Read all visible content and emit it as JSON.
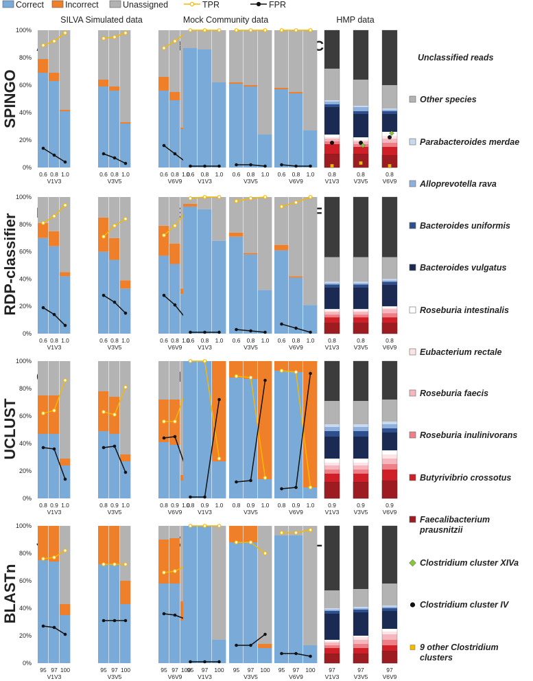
{
  "legend_top": [
    {
      "label": "Correct",
      "kind": "box",
      "color": "#7aaad8"
    },
    {
      "label": "Incorrect",
      "kind": "box",
      "color": "#f07f2a"
    },
    {
      "label": "Unassigned",
      "kind": "box",
      "color": "#b3b3b3"
    },
    {
      "label": "TPR",
      "kind": "line",
      "color": "#f5b800"
    },
    {
      "label": "FPR",
      "kind": "line",
      "color": "#111111"
    }
  ],
  "column_titles": [
    "SILVA Simulated data",
    "Mock Community data",
    "HMP data"
  ],
  "row_titles": [
    "SPINGO",
    "RDP-classifier",
    "UCLUST",
    "BLASTn"
  ],
  "panel_letters": [
    [
      "A",
      "B",
      "C"
    ],
    [
      "D",
      "E",
      "F"
    ],
    [
      "G",
      "H",
      "I"
    ],
    [
      "J",
      "K",
      "L"
    ]
  ],
  "y_ticks": [
    "0%",
    "20%",
    "40%",
    "60%",
    "80%",
    "100%"
  ],
  "regions": [
    "V1V3",
    "V3V5",
    "V6V9"
  ],
  "thresholds": [
    [
      "0.6",
      "0.8",
      "1.0"
    ],
    [
      "0.6",
      "0.8",
      "1.0"
    ],
    [
      "0.8",
      "0.9",
      "1.0"
    ],
    [
      "95",
      "97",
      "100"
    ]
  ],
  "hmp_threshold": [
    "0.8",
    "0.8",
    "0.9",
    "97"
  ],
  "colors": {
    "correct": "#7aaad8",
    "incorrect": "#f07f2a",
    "unassigned": "#b3b3b3",
    "tpr": "#f5b800",
    "fpr": "#111111",
    "unclassified": "#3c3c3c",
    "other": "#b3b3b3",
    "merdae": "#c9d9ef",
    "rava": "#8fb0dc",
    "uniformis": "#2e4f8e",
    "vulgatus": "#1b2a52",
    "intestinalis": "#ffffff",
    "rectale": "#fbe3e6",
    "faecis": "#f6b6bd",
    "inulinivorans": "#ee7f86",
    "crossotus": "#cf2027",
    "prausnitzii": "#9c1c22",
    "clxiva": "#8bc53f",
    "cliv": "#111111",
    "other_clostridium": "#f5b800"
  },
  "chart_data": {
    "type": "bar",
    "silva": [
      [
        {
          "region": "V1V3",
          "correct": [
            69,
            63,
            41
          ],
          "incorrect": [
            10,
            6,
            1
          ],
          "tpr": [
            89,
            92,
            98
          ],
          "fpr": [
            14,
            9,
            4
          ]
        },
        {
          "region": "V3V5",
          "correct": [
            59,
            56,
            32
          ],
          "incorrect": [
            5,
            3,
            1
          ],
          "tpr": [
            94,
            95,
            98
          ],
          "fpr": [
            10,
            7,
            3
          ]
        },
        {
          "region": "V6V9",
          "correct": [
            56,
            49,
            28
          ],
          "incorrect": [
            10,
            6,
            1
          ],
          "tpr": [
            87,
            92,
            98
          ],
          "fpr": [
            16,
            10,
            4
          ]
        }
      ],
      [
        {
          "region": "V1V3",
          "correct": [
            70,
            64,
            42
          ],
          "incorrect": [
            11,
            11,
            3
          ],
          "tpr": [
            81,
            86,
            94
          ],
          "fpr": [
            19,
            14,
            6
          ]
        },
        {
          "region": "V3V5",
          "correct": [
            60,
            54,
            33
          ],
          "incorrect": [
            25,
            16,
            6
          ],
          "tpr": [
            71,
            79,
            84
          ],
          "fpr": [
            28,
            23,
            15
          ]
        },
        {
          "region": "V6V9",
          "correct": [
            57,
            51,
            29
          ],
          "incorrect": [
            22,
            15,
            4
          ],
          "tpr": [
            72,
            79,
            89
          ],
          "fpr": [
            28,
            21,
            11
          ]
        }
      ],
      [
        {
          "region": "V1V3",
          "correct": [
            47,
            47,
            24
          ],
          "incorrect": [
            28,
            28,
            5
          ],
          "tpr": [
            62,
            64,
            86
          ],
          "fpr": [
            37,
            36,
            14
          ]
        },
        {
          "region": "V3V5",
          "correct": [
            49,
            47,
            27
          ],
          "incorrect": [
            29,
            27,
            5
          ],
          "tpr": [
            63,
            61,
            81
          ],
          "fpr": [
            37,
            38,
            19
          ]
        },
        {
          "region": "V6V9",
          "correct": [
            41,
            39,
            13
          ],
          "incorrect": [
            31,
            33,
            4
          ],
          "tpr": [
            56,
            56,
            78
          ],
          "fpr": [
            44,
            45,
            22
          ]
        }
      ],
      [
        {
          "region": "V1V3",
          "correct": [
            75,
            74,
            35
          ],
          "incorrect": [
            25,
            26,
            8
          ],
          "tpr": [
            76,
            77,
            82
          ],
          "fpr": [
            27,
            26,
            21
          ]
        },
        {
          "region": "V3V5",
          "correct": [
            72,
            72,
            43
          ],
          "incorrect": [
            28,
            28,
            17
          ],
          "tpr": [
            72,
            72,
            72
          ],
          "fpr": [
            31,
            31,
            31
          ]
        },
        {
          "region": "V6V9",
          "correct": [
            58,
            58,
            31
          ],
          "incorrect": [
            32,
            33,
            14
          ],
          "tpr": [
            66,
            67,
            71
          ],
          "fpr": [
            36,
            35,
            32
          ]
        }
      ]
    ],
    "mock": [
      [
        {
          "region": "V1V3",
          "correct": [
            87,
            86,
            62
          ],
          "incorrect": [
            0,
            0,
            0
          ],
          "tpr": [
            100,
            100,
            100
          ],
          "fpr": [
            1,
            1,
            1
          ]
        },
        {
          "region": "V3V5",
          "correct": [
            61,
            59,
            24
          ],
          "incorrect": [
            1,
            1,
            0
          ],
          "tpr": [
            100,
            100,
            100
          ],
          "fpr": [
            2,
            2,
            1
          ]
        },
        {
          "region": "V6V9",
          "correct": [
            57,
            54,
            27
          ],
          "incorrect": [
            1,
            1,
            0
          ],
          "tpr": [
            100,
            100,
            100
          ],
          "fpr": [
            2,
            1,
            1
          ]
        }
      ],
      [
        {
          "region": "V1V3",
          "correct": [
            93,
            91,
            68
          ],
          "incorrect": [
            2,
            0,
            0
          ],
          "tpr": [
            99,
            100,
            100
          ],
          "fpr": [
            1,
            1,
            1
          ]
        },
        {
          "region": "V3V5",
          "correct": [
            71,
            58,
            32
          ],
          "incorrect": [
            3,
            1,
            0
          ],
          "tpr": [
            97,
            99,
            100
          ],
          "fpr": [
            3,
            2,
            1
          ]
        },
        {
          "region": "V6V9",
          "correct": [
            61,
            41,
            21
          ],
          "incorrect": [
            4,
            1,
            0
          ],
          "tpr": [
            93,
            96,
            100
          ],
          "fpr": [
            7,
            4,
            1
          ]
        }
      ],
      [
        {
          "region": "V1V3",
          "correct": [
            100,
            100,
            27
          ],
          "incorrect": [
            0,
            0,
            73
          ],
          "tpr": [
            100,
            100,
            29
          ],
          "fpr": [
            1,
            1,
            72
          ]
        },
        {
          "region": "V3V5",
          "correct": [
            88,
            87,
            14
          ],
          "incorrect": [
            12,
            13,
            86
          ],
          "tpr": [
            89,
            88,
            15
          ],
          "fpr": [
            12,
            13,
            86
          ]
        },
        {
          "region": "V6V9",
          "correct": [
            93,
            92,
            8
          ],
          "incorrect": [
            7,
            8,
            92
          ],
          "tpr": [
            93,
            92,
            8
          ],
          "fpr": [
            7,
            8,
            91
          ]
        }
      ],
      [
        {
          "region": "V1V3",
          "correct": [
            100,
            100,
            17
          ],
          "incorrect": [
            0,
            0,
            0
          ],
          "tpr": [
            100,
            100,
            100
          ],
          "fpr": [
            1,
            1,
            1
          ]
        },
        {
          "region": "V3V5",
          "correct": [
            88,
            88,
            11
          ],
          "incorrect": [
            12,
            12,
            3
          ],
          "tpr": [
            88,
            88,
            80
          ],
          "fpr": [
            13,
            13,
            21
          ]
        },
        {
          "region": "V6V9",
          "correct": [
            93,
            93,
            13
          ],
          "incorrect": [
            0,
            0,
            0
          ],
          "tpr": [
            95,
            95,
            97
          ],
          "fpr": [
            7,
            7,
            5
          ]
        }
      ]
    ],
    "hmp_order": [
      "prausnitzii",
      "crossotus",
      "inulinivorans",
      "faecis",
      "rectale",
      "intestinalis",
      "vulgatus",
      "uniformis",
      "rava",
      "merdae",
      "other",
      "unclassified"
    ],
    "hmp": [
      [
        {
          "region": "V1V3",
          "segs": [
            10,
            7,
            2,
            2,
            1,
            2,
            20,
            2,
            2,
            1,
            23,
            28
          ],
          "clxiva": null,
          "cliv": 18,
          "oc": 0
        },
        {
          "region": "V3V5",
          "segs": [
            10,
            5,
            2,
            2,
            1,
            2,
            17,
            2,
            3,
            1,
            19,
            36
          ],
          "clxiva": 16,
          "cliv": 18,
          "oc": 2
        },
        {
          "region": "V6V9",
          "segs": [
            9,
            6,
            3,
            3,
            2,
            3,
            13,
            2,
            1,
            1,
            17,
            40
          ],
          "clxiva": 25,
          "cliv": 22,
          "oc": 0
        }
      ],
      [
        {
          "region": "V1V3",
          "segs": [
            8,
            4,
            2,
            2,
            1,
            1,
            16,
            2,
            1,
            1,
            18,
            44
          ],
          "clxiva": null,
          "cliv": null,
          "oc": null
        },
        {
          "region": "V3V5",
          "segs": [
            8,
            4,
            2,
            2,
            1,
            1,
            16,
            2,
            1,
            1,
            18,
            44
          ],
          "clxiva": null,
          "cliv": null,
          "oc": null
        },
        {
          "region": "V6V9",
          "segs": [
            8,
            4,
            3,
            3,
            1,
            1,
            16,
            2,
            1,
            1,
            16,
            44
          ],
          "clxiva": null,
          "cliv": null,
          "oc": null
        }
      ],
      [
        {
          "region": "V1V3",
          "segs": [
            12,
            6,
            3,
            3,
            2,
            3,
            16,
            4,
            3,
            2,
            17,
            29
          ],
          "clxiva": null,
          "cliv": null,
          "oc": null
        },
        {
          "region": "V3V5",
          "segs": [
            12,
            6,
            3,
            3,
            2,
            3,
            16,
            4,
            3,
            2,
            17,
            29
          ],
          "clxiva": null,
          "cliv": null,
          "oc": null
        },
        {
          "region": "V6V9",
          "segs": [
            13,
            8,
            4,
            4,
            3,
            3,
            13,
            3,
            3,
            2,
            16,
            28
          ],
          "clxiva": null,
          "cliv": null,
          "oc": null
        }
      ],
      [
        {
          "region": "V1V3",
          "segs": [
            7,
            4,
            2,
            2,
            1,
            1,
            19,
            2,
            1,
            1,
            13,
            47
          ],
          "clxiva": null,
          "cliv": null,
          "oc": null
        },
        {
          "region": "V3V5",
          "segs": [
            7,
            4,
            3,
            3,
            2,
            1,
            17,
            2,
            1,
            1,
            13,
            46
          ],
          "clxiva": null,
          "cliv": null,
          "oc": null
        },
        {
          "region": "V6V9",
          "segs": [
            9,
            4,
            4,
            4,
            2,
            2,
            13,
            2,
            1,
            1,
            16,
            42
          ],
          "clxiva": null,
          "cliv": null,
          "oc": null
        }
      ]
    ]
  },
  "hmp_legend": [
    {
      "key": "unclassified",
      "label": "Unclassified reads",
      "kind": "none"
    },
    {
      "key": "other",
      "label": "Other species",
      "kind": "box"
    },
    {
      "key": "merdae",
      "label": "Parabacteroides merdae",
      "kind": "box"
    },
    {
      "key": "rava",
      "label": "Alloprevotella rava",
      "kind": "box"
    },
    {
      "key": "uniformis",
      "label": "Bacteroides uniformis",
      "kind": "box"
    },
    {
      "key": "vulgatus",
      "label": "Bacteroides vulgatus",
      "kind": "box"
    },
    {
      "key": "intestinalis",
      "label": "Roseburia intestinalis",
      "kind": "box"
    },
    {
      "key": "rectale",
      "label": "Eubacterium rectale",
      "kind": "box"
    },
    {
      "key": "faecis",
      "label": "Roseburia faecis",
      "kind": "box"
    },
    {
      "key": "inulinivorans",
      "label": "Roseburia inulinivorans",
      "kind": "box"
    },
    {
      "key": "crossotus",
      "label": "Butyrivibrio crossotus",
      "kind": "box"
    },
    {
      "key": "prausnitzii",
      "label": "Faecalibacterium prausnitzii",
      "kind": "box"
    },
    {
      "key": "clxiva",
      "label": "Clostridium cluster XIVa",
      "kind": "diamond"
    },
    {
      "key": "cliv",
      "label": "Clostridium cluster IV",
      "kind": "dot"
    },
    {
      "key": "other_clostridium",
      "label": "9 other Clostridium clusters",
      "kind": "square"
    }
  ]
}
